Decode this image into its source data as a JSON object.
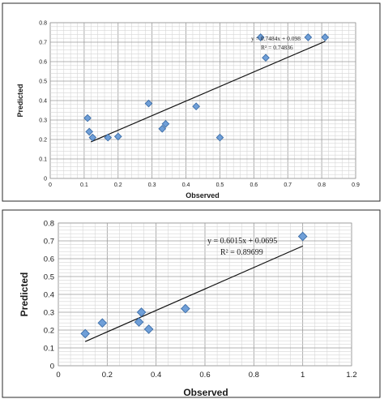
{
  "chart_data": [
    {
      "type": "scatter",
      "title": "",
      "xlabel": "Observed",
      "ylabel": "Predicted",
      "xlim": [
        0,
        0.9
      ],
      "ylim": [
        0,
        0.8
      ],
      "xticks": [
        "0",
        "0.1",
        "0.2",
        "0.3",
        "0.4",
        "0.5",
        "0.6",
        "0.7",
        "0.8",
        "0.9"
      ],
      "yticks": [
        "0",
        "0.1",
        "0.2",
        "0.3",
        "0.4",
        "0.5",
        "0.6",
        "0.7",
        "0.8"
      ],
      "grid": true,
      "points": [
        {
          "x": 0.11,
          "y": 0.31
        },
        {
          "x": 0.115,
          "y": 0.24
        },
        {
          "x": 0.125,
          "y": 0.21
        },
        {
          "x": 0.17,
          "y": 0.21
        },
        {
          "x": 0.2,
          "y": 0.215
        },
        {
          "x": 0.29,
          "y": 0.385
        },
        {
          "x": 0.33,
          "y": 0.255
        },
        {
          "x": 0.34,
          "y": 0.28
        },
        {
          "x": 0.43,
          "y": 0.37
        },
        {
          "x": 0.5,
          "y": 0.21
        },
        {
          "x": 0.62,
          "y": 0.725
        },
        {
          "x": 0.635,
          "y": 0.62
        },
        {
          "x": 0.76,
          "y": 0.725
        },
        {
          "x": 0.81,
          "y": 0.725
        }
      ],
      "trendline": {
        "slope": 0.7484,
        "intercept": 0.098,
        "x_range": [
          0.12,
          0.81
        ]
      },
      "equation": "y = 0.7484x + 0.098",
      "r_squared": "R² = 0.74836"
    },
    {
      "type": "scatter",
      "title": "",
      "xlabel": "Observed",
      "ylabel": "Predicted",
      "xlim": [
        0,
        1.2
      ],
      "ylim": [
        0,
        0.8
      ],
      "xticks": [
        "0",
        "0.2",
        "0.4",
        "0.6",
        "0.8",
        "1",
        "1.2"
      ],
      "yticks": [
        "0",
        "0.1",
        "0.2",
        "0.3",
        "0.4",
        "0.5",
        "0.6",
        "0.7",
        "0.8"
      ],
      "grid": true,
      "points": [
        {
          "x": 0.11,
          "y": 0.18
        },
        {
          "x": 0.18,
          "y": 0.24
        },
        {
          "x": 0.33,
          "y": 0.245
        },
        {
          "x": 0.34,
          "y": 0.3
        },
        {
          "x": 0.37,
          "y": 0.205
        },
        {
          "x": 0.52,
          "y": 0.32
        },
        {
          "x": 1.0,
          "y": 0.725
        }
      ],
      "trendline": {
        "slope": 0.6015,
        "intercept": 0.0695,
        "x_range": [
          0.11,
          1.0
        ]
      },
      "equation": "y = 0.6015x + 0.0695",
      "r_squared": "R² = 0.89699"
    }
  ]
}
